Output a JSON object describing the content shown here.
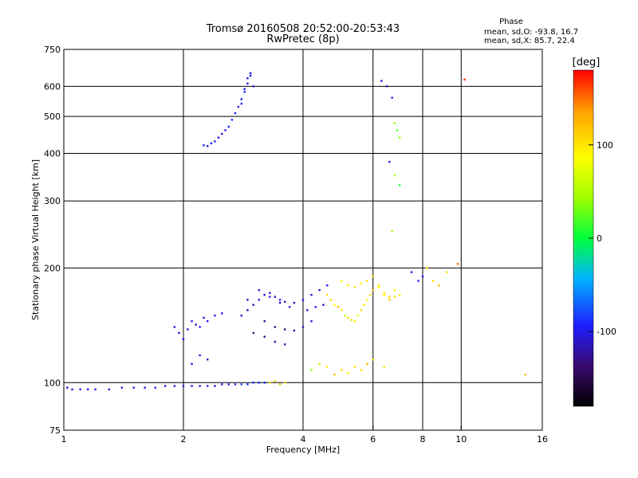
{
  "chart_data": {
    "type": "scatter",
    "title": "Tromsø 20160508 20:52:00-20:53:43",
    "subtitle": "RwPretec (8p)",
    "xlabel": "Frequency [MHz]",
    "ylabel": "Stationary phase Virtual Height [km]",
    "x_scale": "log",
    "y_scale": "log",
    "xlim": [
      1,
      16
    ],
    "ylim": [
      75,
      750
    ],
    "x_ticks": [
      1,
      2,
      4,
      6,
      8,
      10,
      16
    ],
    "y_ticks": [
      75,
      100,
      200,
      300,
      400,
      500,
      600,
      750
    ],
    "grid": true,
    "colorbar": {
      "label": "[deg]",
      "range": [
        -180,
        180
      ],
      "ticks": [
        100,
        0,
        -100
      ],
      "colors": [
        "#000000",
        "#3a0a6e",
        "#1e1eff",
        "#00b4ff",
        "#00ff3c",
        "#a0ff00",
        "#ffff00",
        "#ffa000",
        "#ff0000"
      ]
    },
    "phase_stats": {
      "title": "Phase",
      "lines": [
        "mean, sd,O: -93.8, 16.7",
        "mean, sd,X:  85.7, 22.4"
      ]
    },
    "series": [
      {
        "x": [
          1.02,
          1.05,
          1.1,
          1.15,
          1.2,
          1.3,
          1.4,
          1.5,
          1.6,
          1.7,
          1.8,
          1.9,
          2.0,
          2.1,
          2.2,
          2.3,
          2.4,
          2.5,
          2.6,
          2.7,
          2.8,
          2.9,
          3.0,
          3.1,
          3.2
        ],
        "y": [
          97,
          96,
          96,
          96,
          96,
          96,
          97,
          97,
          97,
          97,
          98,
          98,
          98,
          98,
          98,
          98,
          98,
          99,
          99,
          99,
          99,
          99,
          100,
          100,
          100
        ],
        "phase": [
          -100,
          -100,
          -100,
          -100,
          -100,
          -100,
          -100,
          -100,
          -100,
          -100,
          -100,
          -100,
          -100,
          -100,
          -100,
          -100,
          -100,
          -95,
          -95,
          -90,
          -80,
          -85,
          -90,
          -90,
          -100
        ]
      },
      {
        "x": [
          2.25,
          2.3,
          2.35,
          2.4,
          2.45,
          2.5,
          2.55,
          2.6,
          2.65,
          2.7,
          2.75,
          2.8,
          2.85,
          2.9,
          2.95,
          3.0,
          2.8,
          2.85,
          2.9,
          2.95
        ],
        "y": [
          420,
          418,
          425,
          430,
          440,
          450,
          460,
          470,
          490,
          510,
          530,
          555,
          580,
          610,
          640,
          600,
          540,
          590,
          630,
          650
        ],
        "phase": [
          -100,
          -100,
          -100,
          -100,
          -95,
          -95,
          -95,
          -90,
          -90,
          -90,
          -95,
          -95,
          -100,
          -100,
          -100,
          -100,
          -90,
          -95,
          -95,
          -100
        ]
      },
      {
        "x": [
          2.8,
          2.9,
          3.0,
          3.1,
          3.2,
          3.3,
          3.4,
          3.5,
          3.6,
          3.8,
          4.0,
          4.2,
          4.4,
          4.6,
          3.2,
          3.4,
          3.6,
          3.8,
          4.0,
          4.2,
          3.0,
          3.2,
          3.4,
          3.6,
          2.9,
          3.1,
          3.3,
          3.5,
          3.7,
          4.1,
          4.3,
          4.5
        ],
        "y": [
          150,
          155,
          160,
          165,
          170,
          172,
          168,
          165,
          163,
          162,
          165,
          170,
          175,
          180,
          145,
          140,
          138,
          137,
          140,
          145,
          135,
          132,
          128,
          126,
          165,
          175,
          168,
          162,
          158,
          155,
          158,
          160
        ],
        "phase": [
          -110,
          -115,
          -120,
          -100,
          -110,
          -100,
          -105,
          -100,
          -110,
          -100,
          -95,
          -100,
          -100,
          -95,
          -120,
          -125,
          -130,
          -120,
          -110,
          -105,
          -130,
          -125,
          -120,
          -110,
          -115,
          -105,
          -100,
          -110,
          -100,
          -100,
          -95,
          -100
        ]
      },
      {
        "x": [
          4.6,
          4.7,
          4.8,
          4.9,
          5.0,
          5.1,
          5.2,
          5.3,
          5.4,
          5.5,
          5.6,
          5.7,
          5.8,
          5.9,
          6.0,
          6.2,
          6.4,
          6.6,
          6.8,
          7.0,
          5.0,
          5.2,
          5.4,
          5.6,
          5.8,
          6.0,
          6.2,
          6.4,
          6.6,
          6.8
        ],
        "y": [
          170,
          165,
          160,
          158,
          155,
          150,
          148,
          146,
          145,
          150,
          155,
          160,
          165,
          170,
          175,
          180,
          170,
          165,
          168,
          170,
          185,
          180,
          178,
          182,
          185,
          190,
          178,
          172,
          168,
          175
        ],
        "phase": [
          100,
          110,
          90,
          120,
          100,
          60,
          100,
          105,
          95,
          80,
          110,
          100,
          90,
          100,
          120,
          100,
          95,
          110,
          105,
          100,
          90,
          100,
          110,
          95,
          100,
          105,
          90,
          100,
          110,
          95
        ]
      },
      {
        "x": [
          1.9,
          1.95,
          2.0,
          2.05,
          2.1,
          2.15,
          2.2,
          2.25,
          2.3,
          2.4,
          2.5,
          2.2,
          2.3,
          2.1
        ],
        "y": [
          140,
          135,
          130,
          138,
          145,
          142,
          140,
          148,
          145,
          150,
          152,
          118,
          115,
          112
        ],
        "phase": [
          -100,
          -105,
          -100,
          -110,
          -100,
          -105,
          -100,
          -110,
          -100,
          -100,
          -95,
          -100,
          -110,
          -100
        ]
      },
      {
        "x": [
          6.3,
          6.5,
          6.7,
          6.8,
          6.9,
          7.0,
          6.6,
          6.8,
          7.0,
          6.7
        ],
        "y": [
          620,
          600,
          560,
          480,
          460,
          440,
          380,
          350,
          330,
          250
        ],
        "phase": [
          -100,
          -100,
          -100,
          40,
          20,
          40,
          -100,
          40,
          10,
          40
        ]
      },
      {
        "x": [
          3.3,
          3.4,
          3.5,
          3.6,
          4.2,
          4.4,
          4.6,
          4.8,
          5.0,
          5.2,
          5.4,
          5.6,
          5.8,
          6.0,
          6.4
        ],
        "y": [
          100,
          101,
          99,
          100,
          108,
          112,
          110,
          105,
          108,
          106,
          110,
          108,
          112,
          115,
          110
        ],
        "phase": [
          100,
          110,
          120,
          100,
          40,
          60,
          100,
          120,
          110,
          90,
          110,
          100,
          120,
          100,
          100
        ]
      },
      {
        "x": [
          7.5,
          7.8,
          8.0,
          8.2,
          8.5,
          8.8,
          9.2,
          9.8,
          10.2,
          14.5
        ],
        "y": [
          195,
          185,
          190,
          200,
          185,
          180,
          195,
          205,
          625,
          105
        ],
        "phase": [
          -100,
          -100,
          -95,
          100,
          100,
          120,
          100,
          150,
          170,
          120
        ]
      }
    ]
  }
}
